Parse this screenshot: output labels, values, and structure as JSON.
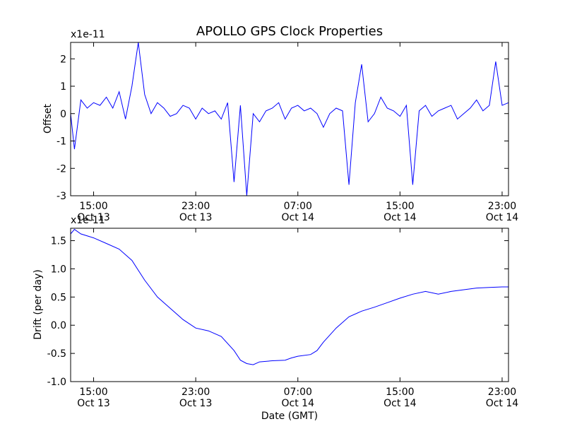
{
  "chart_data": [
    {
      "type": "line",
      "title": "APOLLO GPS Clock Properties",
      "xlabel": "",
      "ylabel": "Offset",
      "offset_text": "x1e-11",
      "xlim": [
        "Oct 13 13:12",
        "Oct 14 23:30"
      ],
      "ylim": [
        -3,
        2.6
      ],
      "yticks": [
        "-3",
        "-2",
        "-1",
        "0",
        "1",
        "2"
      ],
      "xticks": [
        {
          "time": "15:00",
          "date": "Oct 13"
        },
        {
          "time": "23:00",
          "date": "Oct 13"
        },
        {
          "time": "07:00",
          "date": "Oct 14"
        },
        {
          "time": "15:00",
          "date": "Oct 14"
        },
        {
          "time": "23:00",
          "date": "Oct 14"
        }
      ],
      "series_color": "#0000ff",
      "grid": false,
      "series": [
        {
          "x": [
            "Oct 13 13:12",
            "Oct 13 13:30",
            "Oct 13 14:00",
            "Oct 13 14:30",
            "Oct 13 15:00",
            "Oct 13 15:30",
            "Oct 13 16:00",
            "Oct 13 16:30",
            "Oct 13 17:00",
            "Oct 13 17:30",
            "Oct 13 18:00",
            "Oct 13 18:30",
            "Oct 13 19:00",
            "Oct 13 19:30",
            "Oct 13 20:00",
            "Oct 13 20:30",
            "Oct 13 21:00",
            "Oct 13 21:30",
            "Oct 13 22:00",
            "Oct 13 22:30",
            "Oct 13 23:00",
            "Oct 13 23:30",
            "Oct 14 00:00",
            "Oct 14 00:30",
            "Oct 14 01:00",
            "Oct 14 01:30",
            "Oct 14 02:00",
            "Oct 14 02:30",
            "Oct 14 03:00",
            "Oct 14 03:30",
            "Oct 14 04:00",
            "Oct 14 04:30",
            "Oct 14 05:00",
            "Oct 14 05:30",
            "Oct 14 06:00",
            "Oct 14 06:30",
            "Oct 14 07:00",
            "Oct 14 07:30",
            "Oct 14 08:00",
            "Oct 14 08:30",
            "Oct 14 09:00",
            "Oct 14 09:30",
            "Oct 14 10:00",
            "Oct 14 10:30",
            "Oct 14 11:00",
            "Oct 14 11:30",
            "Oct 14 12:00",
            "Oct 14 12:30",
            "Oct 14 13:00",
            "Oct 14 13:30",
            "Oct 14 14:00",
            "Oct 14 14:30",
            "Oct 14 15:00",
            "Oct 14 15:30",
            "Oct 14 16:00",
            "Oct 14 16:30",
            "Oct 14 17:00",
            "Oct 14 17:30",
            "Oct 14 18:00",
            "Oct 14 18:30",
            "Oct 14 19:00",
            "Oct 14 19:30",
            "Oct 14 20:00",
            "Oct 14 20:30",
            "Oct 14 21:00",
            "Oct 14 21:30",
            "Oct 14 22:00",
            "Oct 14 22:30",
            "Oct 14 23:00",
            "Oct 14 23:30"
          ],
          "y": [
            0.0,
            -1.3,
            0.5,
            0.2,
            0.4,
            0.3,
            0.6,
            0.2,
            0.8,
            -0.2,
            1.0,
            2.6,
            0.7,
            0.0,
            0.4,
            0.2,
            -0.1,
            0.0,
            0.3,
            0.2,
            -0.2,
            0.2,
            0.0,
            0.1,
            -0.2,
            0.4,
            -2.5,
            0.3,
            -3.0,
            0.0,
            -0.3,
            0.1,
            0.2,
            0.4,
            -0.2,
            0.2,
            0.3,
            0.1,
            0.2,
            0.0,
            -0.5,
            0.0,
            0.2,
            0.1,
            -2.6,
            0.4,
            1.8,
            -0.3,
            0.0,
            0.6,
            0.2,
            0.1,
            -0.1,
            0.3,
            -2.6,
            0.1,
            0.3,
            -0.1,
            0.1,
            0.2,
            0.3,
            -0.2,
            0.0,
            0.2,
            0.5,
            0.1,
            0.3,
            1.9,
            0.3,
            0.4
          ]
        }
      ]
    },
    {
      "type": "line",
      "title": "",
      "xlabel": "Date (GMT)",
      "ylabel": "Drift (per day)",
      "offset_text": "x1e-11",
      "xlim": [
        "Oct 13 13:12",
        "Oct 14 23:30"
      ],
      "ylim": [
        -1.0,
        1.72
      ],
      "yticks": [
        "-1.0",
        "-0.5",
        "0.0",
        "0.5",
        "1.0",
        "1.5"
      ],
      "xticks": [
        {
          "time": "15:00",
          "date": "Oct 13"
        },
        {
          "time": "23:00",
          "date": "Oct 13"
        },
        {
          "time": "07:00",
          "date": "Oct 14"
        },
        {
          "time": "15:00",
          "date": "Oct 14"
        },
        {
          "time": "23:00",
          "date": "Oct 14"
        }
      ],
      "series_color": "#0000ff",
      "grid": false,
      "series": [
        {
          "x": [
            "Oct 13 13:12",
            "Oct 13 13:30",
            "Oct 13 14:00",
            "Oct 13 15:00",
            "Oct 13 16:00",
            "Oct 13 17:00",
            "Oct 13 18:00",
            "Oct 13 19:00",
            "Oct 13 20:00",
            "Oct 13 21:00",
            "Oct 13 22:00",
            "Oct 13 23:00",
            "Oct 14 00:00",
            "Oct 14 01:00",
            "Oct 14 02:00",
            "Oct 14 02:30",
            "Oct 14 03:00",
            "Oct 14 03:30",
            "Oct 14 04:00",
            "Oct 14 05:00",
            "Oct 14 06:00",
            "Oct 14 06:30",
            "Oct 14 07:00",
            "Oct 14 08:00",
            "Oct 14 08:30",
            "Oct 14 09:00",
            "Oct 14 10:00",
            "Oct 14 11:00",
            "Oct 14 12:00",
            "Oct 14 13:00",
            "Oct 14 14:00",
            "Oct 14 15:00",
            "Oct 14 16:00",
            "Oct 14 17:00",
            "Oct 14 18:00",
            "Oct 14 19:00",
            "Oct 14 20:00",
            "Oct 14 21:00",
            "Oct 14 22:00",
            "Oct 14 23:00",
            "Oct 14 23:30"
          ],
          "y": [
            1.62,
            1.7,
            1.62,
            1.55,
            1.45,
            1.35,
            1.15,
            0.8,
            0.5,
            0.3,
            0.1,
            -0.05,
            -0.1,
            -0.2,
            -0.45,
            -0.62,
            -0.68,
            -0.7,
            -0.65,
            -0.63,
            -0.62,
            -0.58,
            -0.55,
            -0.52,
            -0.45,
            -0.3,
            -0.05,
            0.15,
            0.25,
            0.32,
            0.4,
            0.48,
            0.55,
            0.6,
            0.55,
            0.6,
            0.63,
            0.66,
            0.67,
            0.68,
            0.68
          ]
        }
      ]
    }
  ]
}
